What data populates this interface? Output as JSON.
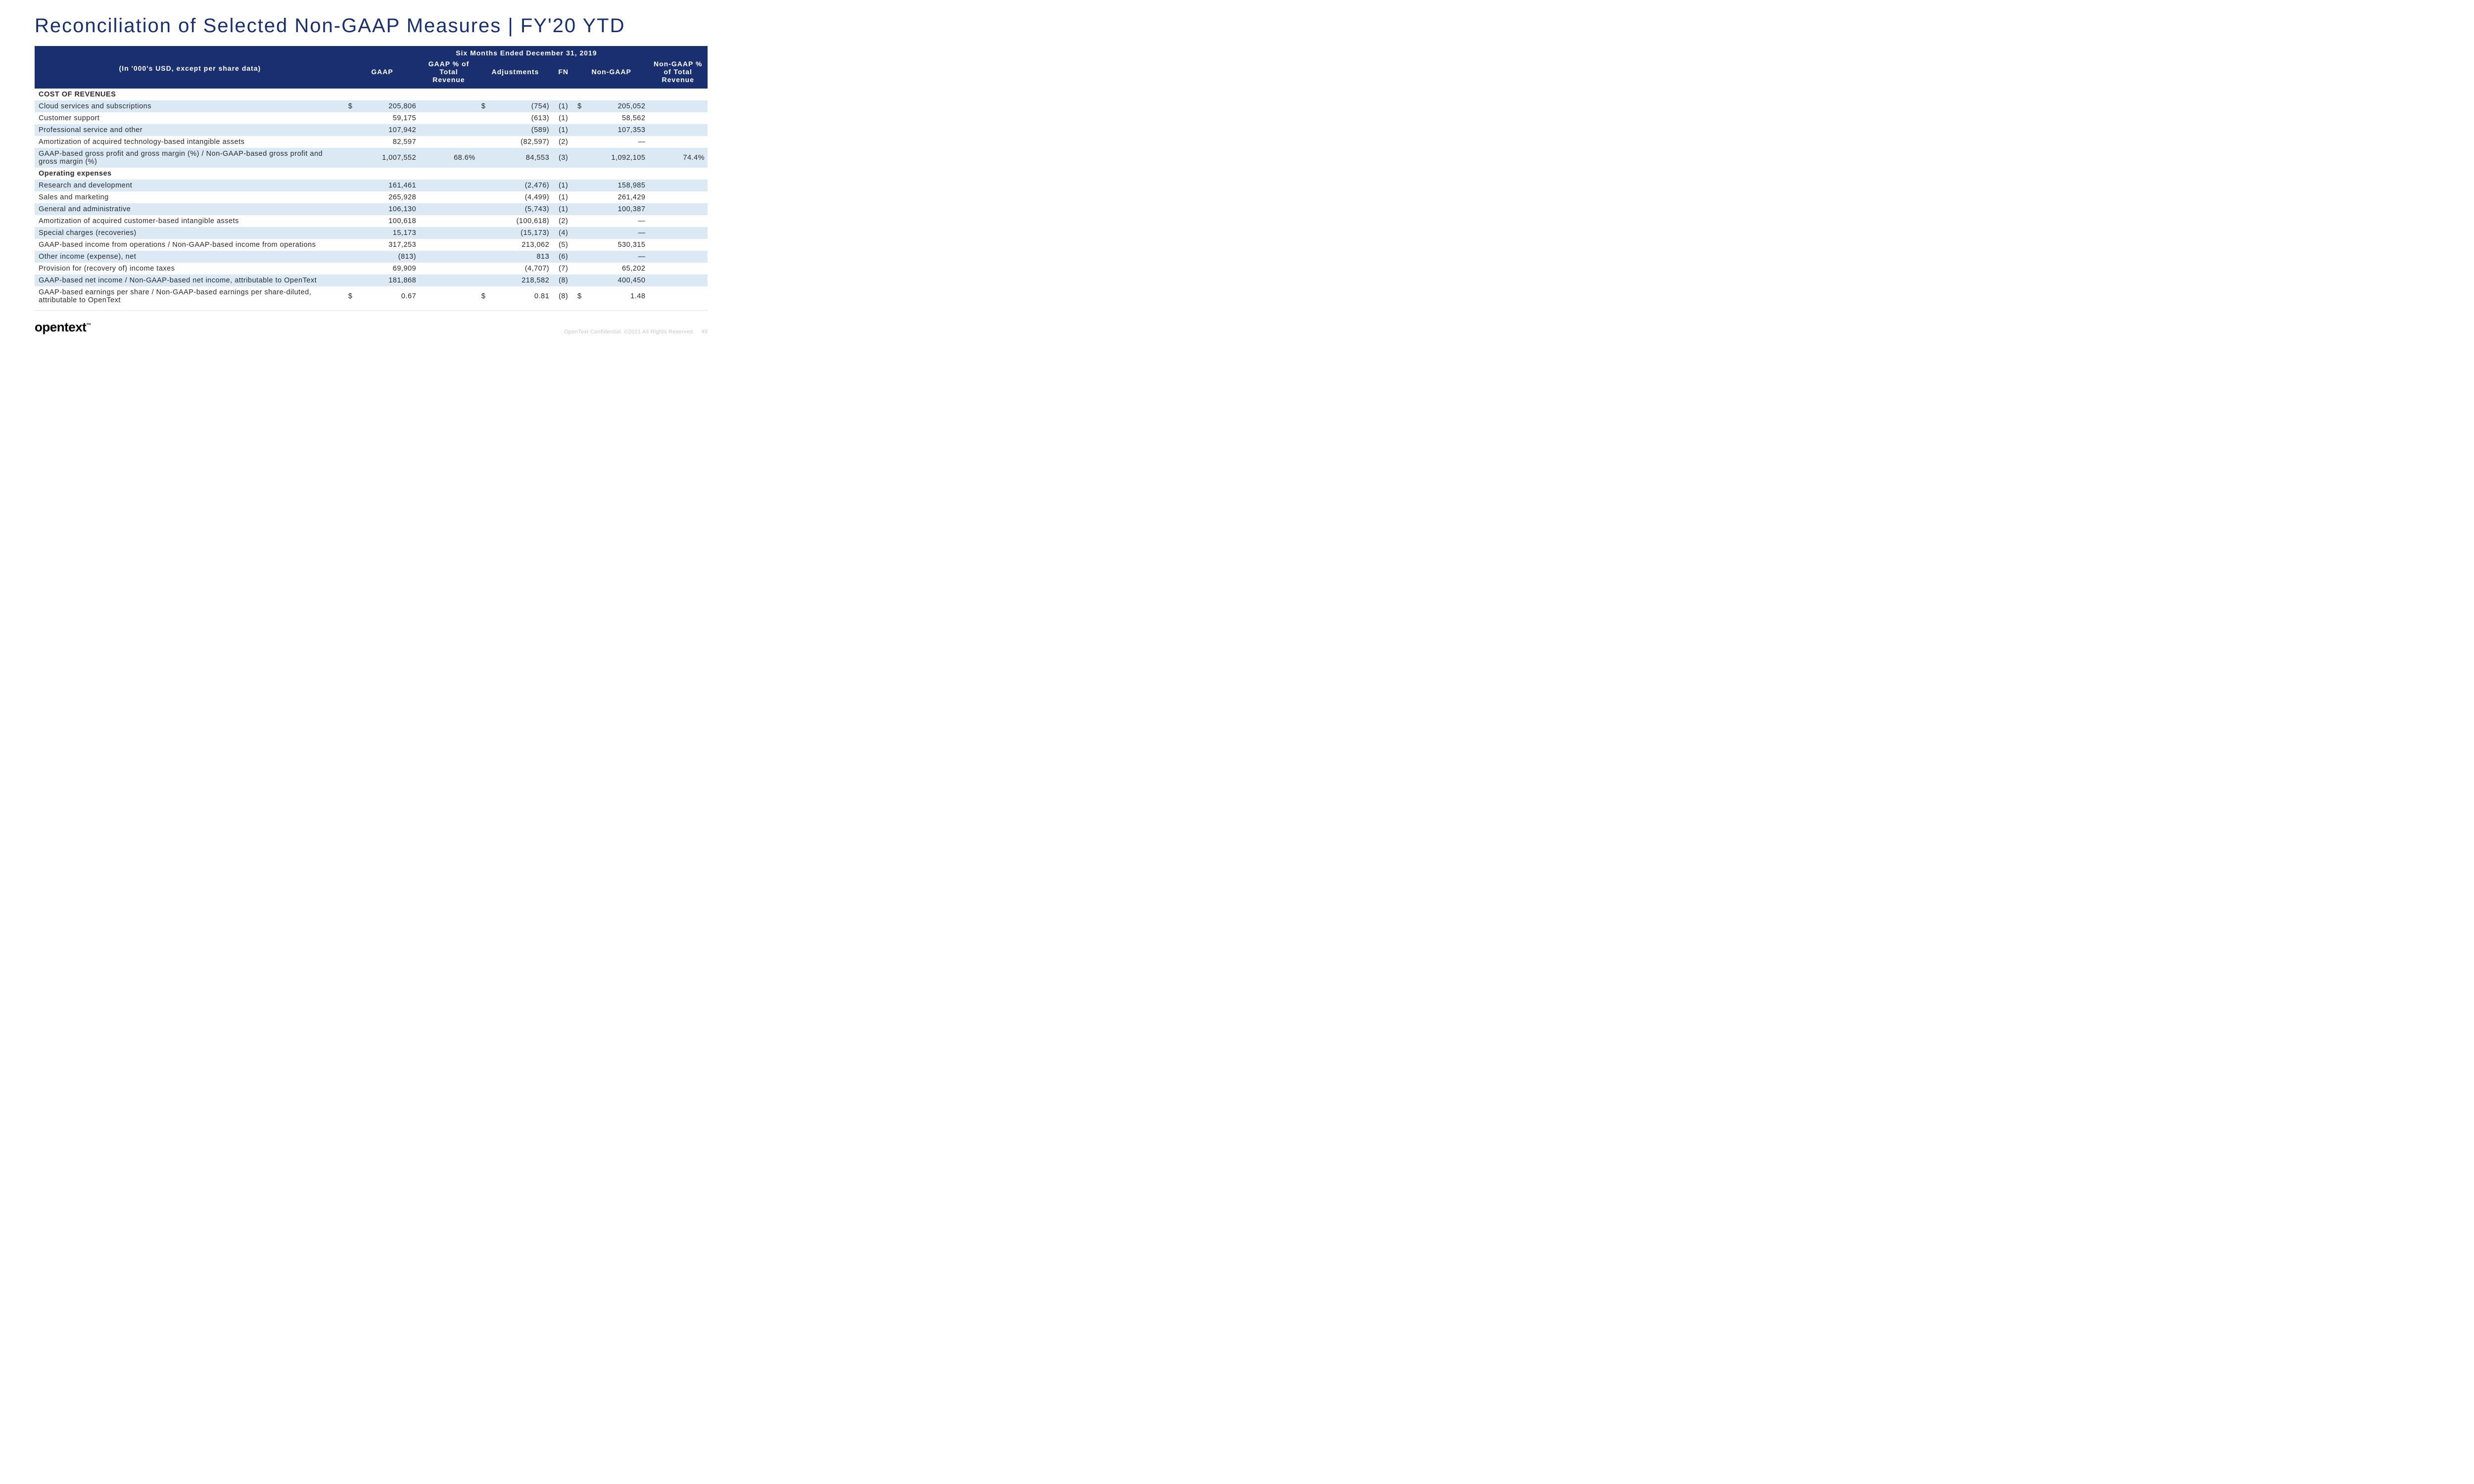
{
  "title": "Reconciliation of Selected Non-GAAP Measures | FY'20 YTD",
  "subtitle_left": "(In '000's USD, except per share data)",
  "period": "Six Months Ended December 31, 2019",
  "columns": {
    "gaap": "GAAP",
    "gaap_pct": "GAAP % of Total Revenue",
    "adj": "Adjustments",
    "fn": "FN",
    "nongaap": "Non-GAAP",
    "nongaap_pct": "Non-GAAP % of Total Revenue"
  },
  "sections": [
    {
      "label": "COST OF REVENUES"
    },
    {
      "label": "Operating expenses"
    }
  ],
  "rows": [
    {
      "section": 0,
      "stripe": true,
      "label": "Cloud services and subscriptions",
      "cur1": "$",
      "gaap": "205,806",
      "gaap_pct": "",
      "cur2": "$",
      "adj": "(754)",
      "fn": "(1)",
      "cur3": "$",
      "nongaap": "205,052",
      "nongaap_pct": ""
    },
    {
      "section": 0,
      "stripe": false,
      "label": "Customer support",
      "cur1": "",
      "gaap": "59,175",
      "gaap_pct": "",
      "cur2": "",
      "adj": "(613)",
      "fn": "(1)",
      "cur3": "",
      "nongaap": "58,562",
      "nongaap_pct": ""
    },
    {
      "section": 0,
      "stripe": true,
      "label": "Professional service and other",
      "cur1": "",
      "gaap": "107,942",
      "gaap_pct": "",
      "cur2": "",
      "adj": "(589)",
      "fn": "(1)",
      "cur3": "",
      "nongaap": "107,353",
      "nongaap_pct": ""
    },
    {
      "section": 0,
      "stripe": false,
      "label": "Amortization of acquired technology-based intangible assets",
      "cur1": "",
      "gaap": "82,597",
      "gaap_pct": "",
      "cur2": "",
      "adj": "(82,597)",
      "fn": "(2)",
      "cur3": "",
      "nongaap": "—",
      "nongaap_pct": ""
    },
    {
      "section": 0,
      "stripe": true,
      "label": "GAAP-based gross profit and gross margin (%) / Non-GAAP-based gross profit and gross margin (%)",
      "cur1": "",
      "gaap": "1,007,552",
      "gaap_pct": "68.6%",
      "cur2": "",
      "adj": "84,553",
      "fn": "(3)",
      "cur3": "",
      "nongaap": "1,092,105",
      "nongaap_pct": "74.4%"
    },
    {
      "section": 1,
      "stripe": true,
      "label": "Research and development",
      "cur1": "",
      "gaap": "161,461",
      "gaap_pct": "",
      "cur2": "",
      "adj": "(2,476)",
      "fn": "(1)",
      "cur3": "",
      "nongaap": "158,985",
      "nongaap_pct": ""
    },
    {
      "section": 1,
      "stripe": false,
      "label": "Sales and marketing",
      "cur1": "",
      "gaap": "265,928",
      "gaap_pct": "",
      "cur2": "",
      "adj": "(4,499)",
      "fn": "(1)",
      "cur3": "",
      "nongaap": "261,429",
      "nongaap_pct": ""
    },
    {
      "section": 1,
      "stripe": true,
      "label": "General and administrative",
      "cur1": "",
      "gaap": "106,130",
      "gaap_pct": "",
      "cur2": "",
      "adj": "(5,743)",
      "fn": "(1)",
      "cur3": "",
      "nongaap": "100,387",
      "nongaap_pct": ""
    },
    {
      "section": 1,
      "stripe": false,
      "label": "Amortization of acquired customer-based intangible assets",
      "cur1": "",
      "gaap": "100,618",
      "gaap_pct": "",
      "cur2": "",
      "adj": "(100,618)",
      "fn": "(2)",
      "cur3": "",
      "nongaap": "—",
      "nongaap_pct": ""
    },
    {
      "section": 1,
      "stripe": true,
      "label": "Special charges (recoveries)",
      "cur1": "",
      "gaap": "15,173",
      "gaap_pct": "",
      "cur2": "",
      "adj": "(15,173)",
      "fn": "(4)",
      "cur3": "",
      "nongaap": "—",
      "nongaap_pct": ""
    },
    {
      "section": 1,
      "stripe": false,
      "label": "GAAP-based income from operations / Non-GAAP-based income from operations",
      "cur1": "",
      "gaap": "317,253",
      "gaap_pct": "",
      "cur2": "",
      "adj": "213,062",
      "fn": "(5)",
      "cur3": "",
      "nongaap": "530,315",
      "nongaap_pct": ""
    },
    {
      "section": 1,
      "stripe": true,
      "label": "Other income (expense), net",
      "cur1": "",
      "gaap": "(813)",
      "gaap_pct": "",
      "cur2": "",
      "adj": "813",
      "fn": "(6)",
      "cur3": "",
      "nongaap": "—",
      "nongaap_pct": ""
    },
    {
      "section": 1,
      "stripe": false,
      "label": "Provision for (recovery of) income taxes",
      "cur1": "",
      "gaap": "69,909",
      "gaap_pct": "",
      "cur2": "",
      "adj": "(4,707)",
      "fn": "(7)",
      "cur3": "",
      "nongaap": "65,202",
      "nongaap_pct": ""
    },
    {
      "section": 1,
      "stripe": true,
      "label": "GAAP-based net income / Non-GAAP-based net income, attributable to OpenText",
      "cur1": "",
      "gaap": "181,868",
      "gaap_pct": "",
      "cur2": "",
      "adj": "218,582",
      "fn": "(8)",
      "cur3": "",
      "nongaap": "400,450",
      "nongaap_pct": ""
    },
    {
      "section": 1,
      "stripe": false,
      "label": "GAAP-based earnings per share / Non-GAAP-based earnings per share-diluted, attributable to OpenText",
      "cur1": "$",
      "gaap": "0.67",
      "gaap_pct": "",
      "cur2": "$",
      "adj": "0.81",
      "fn": "(8)",
      "cur3": "$",
      "nongaap": "1.48",
      "nongaap_pct": ""
    }
  ],
  "footer": {
    "logo": "opentext",
    "tm": "™",
    "copyright": "OpenText Confidential. ©2021 All Rights Reserved.",
    "page": "45"
  }
}
